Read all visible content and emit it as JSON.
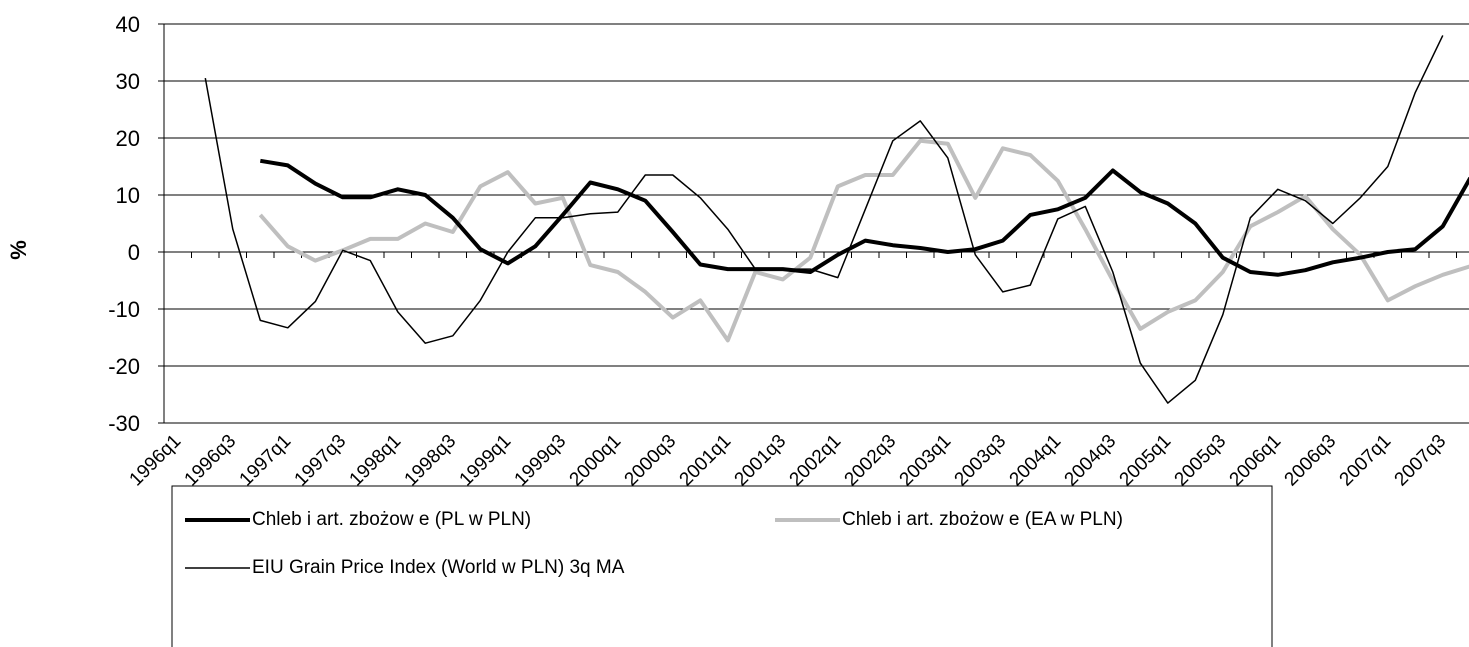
{
  "chart_data": {
    "type": "line",
    "ylabel": "%",
    "categories": [
      "1996q1",
      null,
      "1996q3",
      null,
      "1997q1",
      null,
      "1997q3",
      null,
      "1998q1",
      null,
      "1998q3",
      null,
      "1999q1",
      null,
      "1999q3",
      null,
      "2000q1",
      null,
      "2000q3",
      null,
      "2001q1",
      null,
      "2001q3",
      null,
      "2002q1",
      null,
      "2002q3",
      null,
      "2003q1",
      null,
      "2003q3",
      null,
      "2004q1",
      null,
      "2004q3",
      null,
      "2005q1",
      null,
      "2005q3",
      null,
      "2006q1",
      null,
      "2006q3",
      null,
      "2007q1",
      null,
      "2007q3",
      null
    ],
    "series": [
      {
        "name": "Chleb i art. zbożow e (PL w PLN)",
        "color": "#000000",
        "values": [
          null,
          null,
          null,
          16,
          15.2,
          12,
          9.6,
          9.6,
          11,
          10,
          6,
          0.5,
          -2,
          1,
          6.5,
          12.2,
          11,
          9,
          3.5,
          -2.2,
          -3,
          -3,
          -3,
          -3.5,
          -0.5,
          2,
          1.2,
          0.7,
          0,
          0.5,
          2,
          6.5,
          7.5,
          9.5,
          14.3,
          10.5,
          8.5,
          5,
          -1,
          -3.5,
          -4,
          -3.2,
          -1.8,
          -1,
          0,
          0.5,
          4.5,
          13
        ]
      },
      {
        "name": "Chleb i art. zbożow e (EA w PLN)",
        "color": "#bfbfbf",
        "values": [
          null,
          null,
          null,
          6.5,
          1,
          -1.5,
          0.3,
          2.3,
          2.3,
          5,
          3.5,
          11.5,
          14,
          8.5,
          9.5,
          -2.3,
          -3.5,
          -7,
          -11.5,
          -8.5,
          -15.5,
          -3.5,
          -4.8,
          -1,
          11.5,
          13.5,
          13.5,
          19.5,
          19,
          9.5,
          18.2,
          17,
          12.5,
          4,
          -5,
          -13.5,
          -10.5,
          -8.5,
          -3.5,
          4.5,
          7,
          9.8,
          4,
          -0.5,
          -8.5,
          -6,
          -4,
          -2.5
        ]
      },
      {
        "name": "EIU Grain Price Index (World w PLN) 3q MA",
        "color": "#000000",
        "values": [
          null,
          30.5,
          4,
          -12,
          -13.3,
          -8.7,
          0.3,
          -1.5,
          -10.5,
          -16,
          -14.7,
          -8.5,
          0,
          6,
          6,
          6.7,
          7,
          13.5,
          13.5,
          9.5,
          4,
          -3,
          -3,
          -3,
          -4.5,
          7.5,
          19.5,
          23,
          16.5,
          -0.5,
          -7,
          -5.8,
          5.8,
          8,
          -3.5,
          -19.5,
          -26.5,
          -22.5,
          -11,
          6,
          11,
          9,
          5,
          9.5,
          15,
          28,
          38,
          null
        ]
      }
    ],
    "ylim": [
      -30,
      40
    ],
    "yticks": [
      -30,
      -20,
      -10,
      0,
      10,
      20,
      30,
      40
    ],
    "grid": true
  }
}
